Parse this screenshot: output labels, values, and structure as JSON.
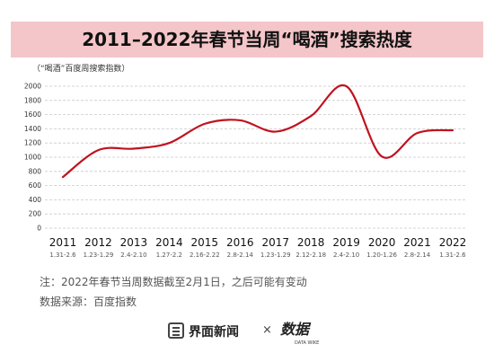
{
  "title": "2011–2022年春节当周“喝酒”搜索热度",
  "chart_data": {
    "type": "line",
    "ylabel": "（“喝酒”百度周搜索指数）",
    "ylim": [
      0,
      2000
    ],
    "yticks": [
      0,
      200,
      400,
      600,
      800,
      1000,
      1200,
      1400,
      1600,
      1800,
      2000
    ],
    "grid": true,
    "color": "#c0121f",
    "categories": [
      "2011",
      "2012",
      "2013",
      "2014",
      "2015",
      "2016",
      "2017",
      "2018",
      "2019",
      "2020",
      "2021",
      "2022"
    ],
    "date_ranges": [
      "1.31-2.6",
      "1.23-1.29",
      "2.4-2.10",
      "1.27-2.2",
      "2.16-2.22",
      "2.8-2.14",
      "1.23-1.29",
      "2.12-2.18",
      "2.4-2.10",
      "1.20-1.26",
      "2.8-2.14",
      "1.31-2.6"
    ],
    "values": [
      720,
      1100,
      1120,
      1200,
      1470,
      1520,
      1360,
      1580,
      2000,
      1010,
      1340,
      1380
    ]
  },
  "notes": {
    "note1": "注：2022年春节当周数据截至2月1日，之后可能有变动",
    "note2": "数据来源：百度指数"
  },
  "footer": {
    "brand": "界面新闻",
    "times": "×",
    "logo_text": "数据",
    "logo_sub": "DATA WIKE"
  }
}
